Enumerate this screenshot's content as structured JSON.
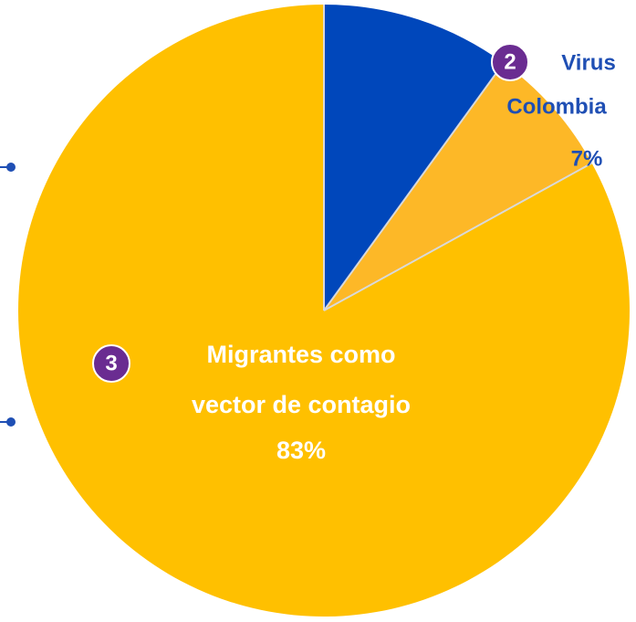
{
  "chart_data": {
    "type": "pie",
    "categories": [
      null,
      [
        "Virus",
        "Colombia"
      ],
      [
        "Migrantes como",
        "vector de contagio"
      ]
    ],
    "markers": [
      null,
      "2",
      "3"
    ],
    "values": [
      10,
      7,
      83
    ],
    "value_labels": [
      null,
      "7%",
      "83%"
    ],
    "colors": [
      "#0047bb",
      "#fdb827",
      "#ffc000"
    ],
    "label_colors": [
      "#ffffff",
      "#1f4fb4",
      "#ffffff"
    ],
    "marker_color": "#6a2c91"
  }
}
